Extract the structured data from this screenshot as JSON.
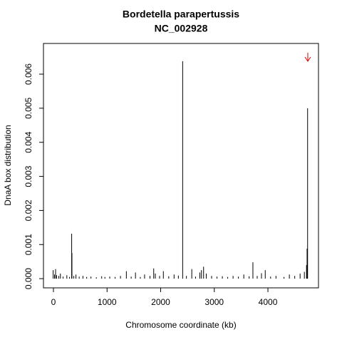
{
  "chart_data": {
    "type": "spike",
    "title": "Bordetella parapertussis",
    "subtitle": "NC_002928",
    "x_label": "Chromosome coordinate (kb)",
    "y_label": "DnaA box distribution",
    "color": "#000000",
    "x": [
      -5,
      20,
      40,
      60,
      100,
      130,
      180,
      250,
      300,
      340,
      345,
      380,
      420,
      480,
      550,
      620,
      700,
      800,
      900,
      960,
      1050,
      1150,
      1250,
      1360,
      1450,
      1530,
      1620,
      1700,
      1800,
      1870,
      1900,
      1980,
      2050,
      2150,
      2250,
      2330,
      2410,
      2480,
      2580,
      2650,
      2730,
      2760,
      2800,
      2850,
      2950,
      3050,
      3150,
      3250,
      3350,
      3450,
      3550,
      3650,
      3720,
      3800,
      3880,
      3950,
      4050,
      4150,
      4300,
      4400,
      4500,
      4600,
      4680,
      4720,
      4730,
      4740
    ],
    "values": [
      0.00025,
      0.00012,
      0.00028,
      0.0001,
      8e-05,
      0.00015,
      6e-05,
      0.0001,
      5e-05,
      0.00132,
      0.00075,
      8e-05,
      0.00012,
      6e-05,
      8e-05,
      5e-05,
      6e-05,
      4e-05,
      7e-05,
      5e-05,
      6e-05,
      5e-05,
      8e-05,
      0.00022,
      6e-05,
      0.00018,
      5e-05,
      0.00012,
      8e-05,
      0.0003,
      0.00015,
      8e-05,
      0.00022,
      7e-05,
      0.00012,
      9e-05,
      0.00638,
      8e-05,
      0.00028,
      6e-05,
      0.00018,
      0.00025,
      0.00035,
      0.00015,
      8e-05,
      6e-05,
      7e-05,
      5e-05,
      8e-05,
      6e-05,
      0.00012,
      7e-05,
      0.00048,
      8e-05,
      0.00016,
      0.00025,
      6e-05,
      8e-05,
      5e-05,
      0.00012,
      8e-05,
      0.00015,
      0.0002,
      0.0004,
      0.00088,
      0.005
    ],
    "xlim": [
      -186,
      4943
    ],
    "ylim": [
      -0.00027,
      0.0069
    ],
    "xticks": [
      0,
      1000,
      2000,
      3000,
      4000
    ],
    "yticks": [
      {
        "value": 0,
        "label": "0.000"
      },
      {
        "value": 0.001,
        "label": "0.001"
      },
      {
        "value": 0.002,
        "label": "0.002"
      },
      {
        "value": 0.003,
        "label": "0.003"
      },
      {
        "value": 0.004,
        "label": "0.004"
      },
      {
        "value": 0.005,
        "label": "0.005"
      },
      {
        "value": 0.006,
        "label": "0.006"
      }
    ]
  }
}
